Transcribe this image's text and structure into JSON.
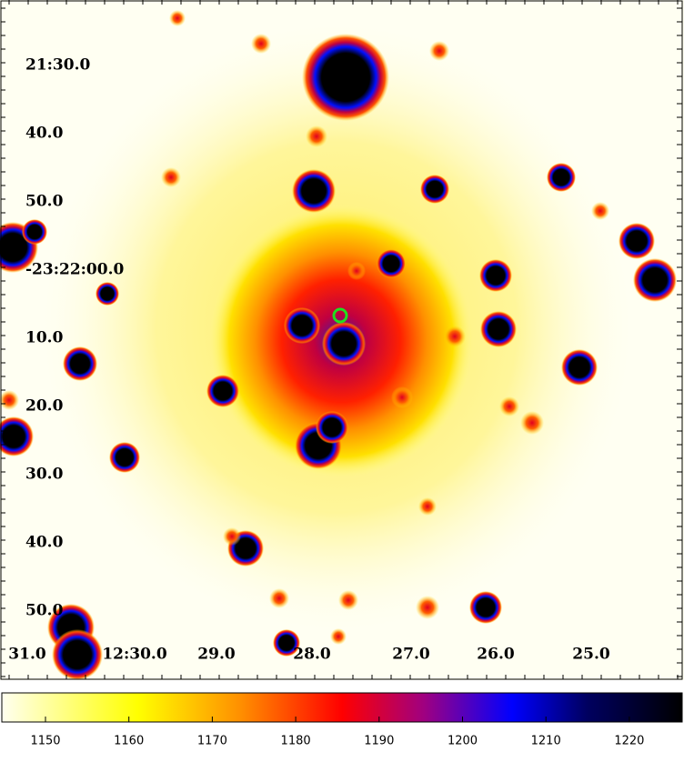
{
  "image": {
    "dec_labels": [
      "21:30.0",
      "40.0",
      "50.0",
      "-23:22:00.0",
      "10.0",
      "20.0",
      "30.0",
      "40.0",
      "50.0"
    ],
    "ra_labels": [
      "31.0",
      "12:30.0",
      "29.0",
      "28.0",
      "27.0",
      "26.0",
      "25.0"
    ]
  },
  "colorbar": {
    "ticks": [
      1150,
      1160,
      1170,
      1180,
      1190,
      1200,
      1210,
      1220
    ]
  }
}
